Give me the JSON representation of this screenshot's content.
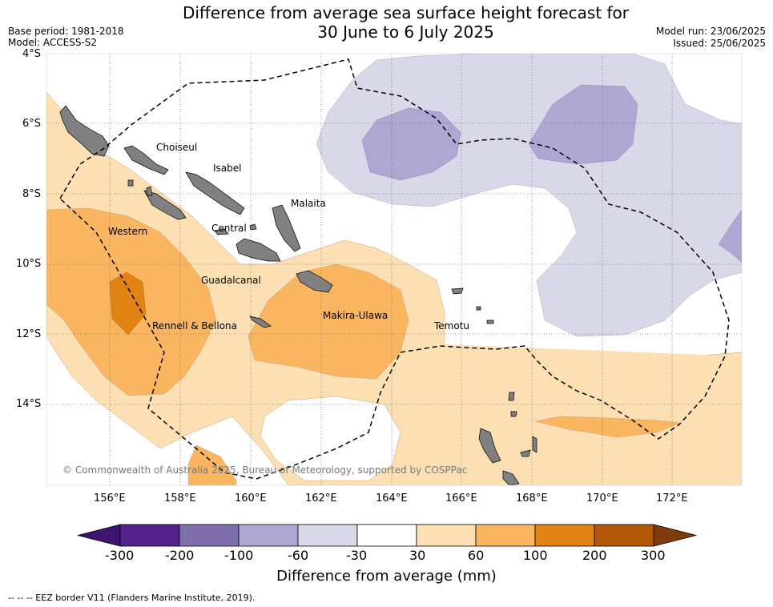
{
  "header": {
    "title_line1": "Difference from average sea surface height forecast for",
    "title_line2": "30 June to 6 July 2025",
    "base_period": "Base period: 1981-2018",
    "model": "Model: ACCESS-S2",
    "model_run": "Model run: 23/06/2025",
    "issued": "Issued: 25/06/2025"
  },
  "axes": {
    "lat_labels": [
      "4°S",
      "6°S",
      "8°S",
      "10°S",
      "12°S",
      "14°S"
    ],
    "lon_labels": [
      "156°E",
      "158°E",
      "160°E",
      "162°E",
      "164°E",
      "166°E",
      "168°E",
      "170°E",
      "172°E"
    ]
  },
  "places": [
    "Choiseul",
    "Isabel",
    "Malaita",
    "Western",
    "Central",
    "Guadalcanal",
    "Makira-Ulawa",
    "Rennell & Bellona",
    "Temotu"
  ],
  "copyright": "© Commonwealth of Australia 2025, Bureau of Meteorology, supported by COSPPac",
  "colorbar": {
    "title": "Difference from average (mm)",
    "tick_labels": [
      "-300",
      "-200",
      "-100",
      "-60",
      "-30",
      "30",
      "60",
      "100",
      "200",
      "300"
    ],
    "colors": [
      "#3f1370",
      "#54228c",
      "#7f70ad",
      "#ada7d1",
      "#d8d8e9",
      "#ffffff",
      "#fddfb4",
      "#f9b55f",
      "#e08214",
      "#b35806",
      "#7f3b08"
    ]
  },
  "legend_note": "--  --  -- EEZ border V11 (Flanders Marine Institute, 2019)."
}
